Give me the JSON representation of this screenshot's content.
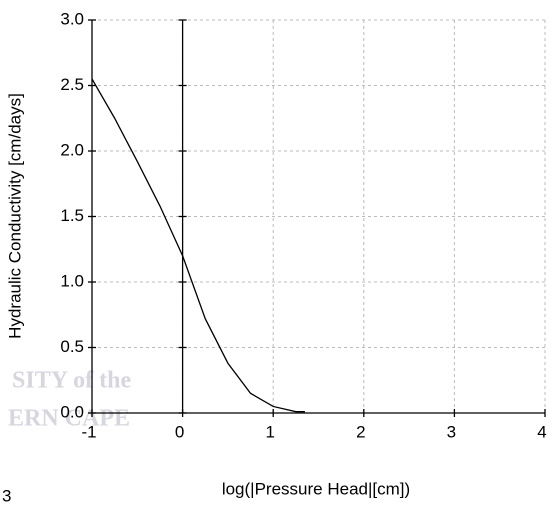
{
  "chart_data": {
    "type": "line",
    "x_label": "log(|Pressure Head|[cm])",
    "y_label": "Hydraulic Conductivity [cm/days]",
    "watermark": [
      "SITY of the",
      "ERN CAPE"
    ],
    "page_fragment": "3",
    "xlim": [
      -1,
      4
    ],
    "xticks": [
      -1,
      0,
      1,
      2,
      3,
      4
    ],
    "ylim": [
      0,
      3
    ],
    "yticks": [
      {
        "value": 0,
        "label": "0.0"
      },
      0.5,
      {
        "value": 1,
        "label": "1.0"
      },
      1.5,
      {
        "value": 2,
        "label": "2.0"
      },
      2.5,
      {
        "value": 3,
        "label": "3.0"
      }
    ],
    "grid": true,
    "x": [
      -1,
      -0.75,
      -0.5,
      -0.25,
      0,
      0.25,
      0.5,
      0.75,
      1,
      1.25,
      1.35
    ],
    "series": [
      {
        "color": "#000000",
        "values": [
          2.55,
          2.25,
          1.92,
          1.58,
          1.2,
          0.72,
          0.38,
          0.15,
          0.05,
          0.01,
          0.01
        ]
      }
    ]
  }
}
